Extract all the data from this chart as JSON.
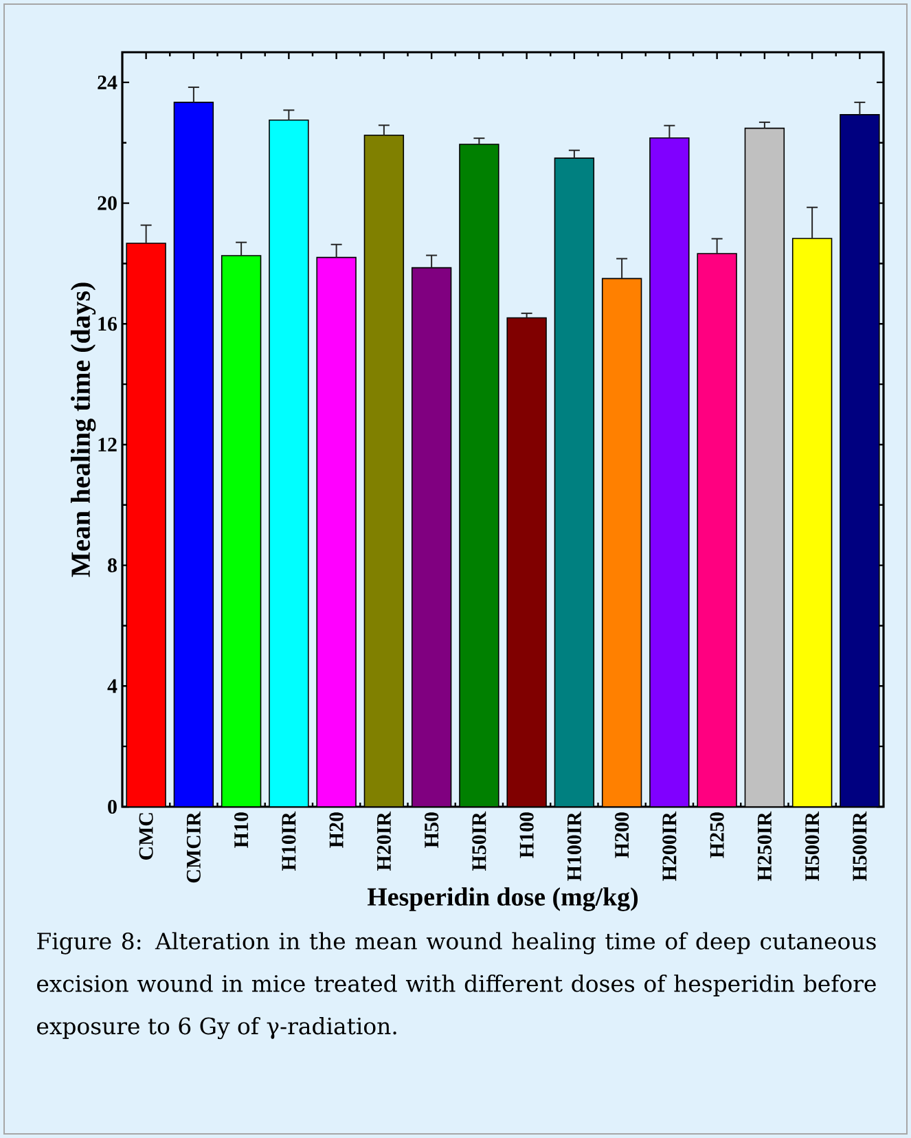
{
  "chart_data": {
    "type": "bar",
    "xlabel": "Hesperidin dose (mg/kg)",
    "ylabel": "Mean healing time (days)",
    "categories": [
      "CMC",
      "CMCIR",
      "H10",
      "H10IR",
      "H20",
      "H20IR",
      "H50",
      "H50IR",
      "H100",
      "H100IR",
      "H200",
      "H200IR",
      "H250",
      "H250IR",
      "H500IR",
      "H500IR"
    ],
    "values": [
      18.67,
      23.34,
      18.26,
      22.75,
      18.2,
      22.25,
      17.86,
      21.95,
      16.2,
      21.49,
      17.5,
      22.16,
      18.33,
      22.48,
      18.83,
      22.93
    ],
    "errors": [
      0.6,
      0.5,
      0.44,
      0.33,
      0.43,
      0.33,
      0.41,
      0.2,
      0.15,
      0.26,
      0.66,
      0.41,
      0.49,
      0.2,
      1.03,
      0.41
    ],
    "colors": [
      "#ff0000",
      "#0000ff",
      "#00ff00",
      "#00ffff",
      "#ff00ff",
      "#808000",
      "#800080",
      "#008000",
      "#800000",
      "#008080",
      "#ff8000",
      "#8000ff",
      "#ff0080",
      "#c0c0c0",
      "#ffff00",
      "#000080"
    ],
    "ylim": [
      0,
      25
    ],
    "yticks": [
      0,
      4,
      8,
      12,
      16,
      20,
      24
    ],
    "annotations": [
      "Figure 8: Alteration in the mean wound healing time of deep cutaneous excision wound in mice treated with different doses of hesperidin before exposure to 6 Gy of γ-radiation."
    ]
  }
}
